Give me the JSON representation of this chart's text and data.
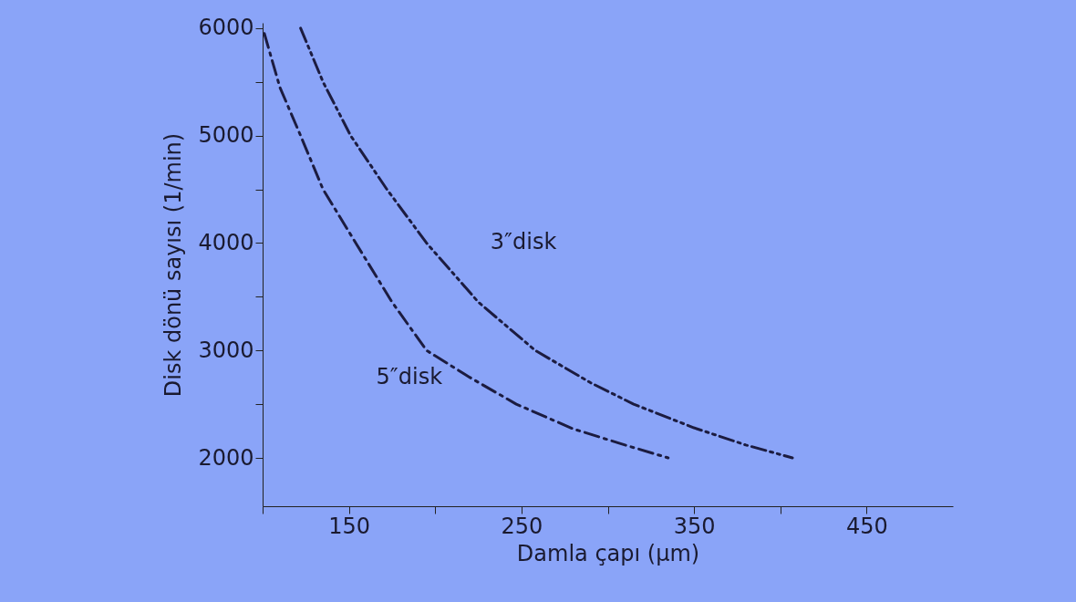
{
  "chart_data": {
    "type": "line",
    "xlabel": "Damla çapı (μm)",
    "ylabel": "Disk dönü sayısı (1/min)",
    "xlim": [
      100,
      500
    ],
    "ylim": [
      1550,
      6050
    ],
    "xticks": [
      {
        "value": 100,
        "label": null
      },
      150,
      {
        "value": 200,
        "label": null
      },
      250,
      {
        "value": 300,
        "label": null
      },
      350,
      {
        "value": 400,
        "label": null
      },
      450
    ],
    "yticks": [
      2000,
      {
        "value": 2500,
        "label": null
      },
      3000,
      {
        "value": 3500,
        "label": null
      },
      4000,
      {
        "value": 4500,
        "label": null
      },
      5000,
      {
        "value": 5500,
        "label": null
      },
      6000
    ],
    "grid": false,
    "marker": "none",
    "series": [
      {
        "color": "#1c1c40",
        "line_style": "dashed",
        "x": [
          101,
          110,
          122,
          135,
          154,
          175,
          195,
          220,
          247,
          280,
          310,
          335
        ],
        "values": [
          5950,
          5450,
          5000,
          4500,
          4000,
          3450,
          3000,
          2750,
          2500,
          2270,
          2120,
          2000
        ]
      },
      {
        "color": "#1c1c40",
        "line_style": "dotted",
        "x": [
          122,
          135,
          151,
          172,
          195,
          225,
          258,
          290,
          315,
          350,
          380,
          407
        ],
        "values": [
          6000,
          5500,
          5000,
          4500,
          4000,
          3450,
          3000,
          2700,
          2500,
          2280,
          2120,
          2000
        ]
      }
    ],
    "annotations": [
      {
        "text": "3″disk",
        "x": 195,
        "y": 4000
      },
      {
        "text": "5″disk",
        "x": 220,
        "y": 2750
      }
    ]
  }
}
